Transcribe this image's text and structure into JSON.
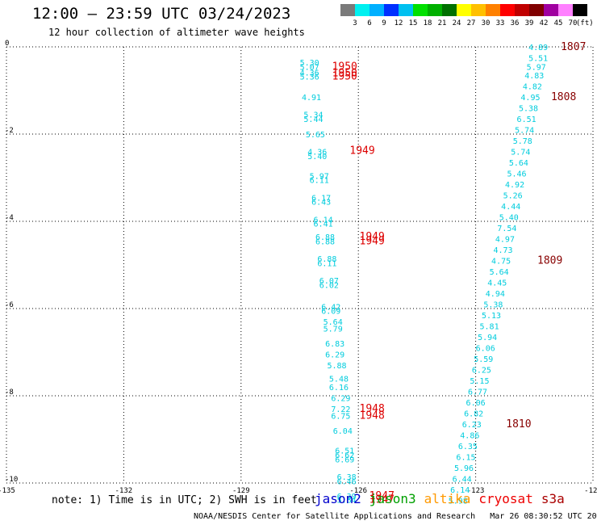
{
  "header": {
    "title": "12:00 – 23:59 UTC 03/24/2023",
    "subtitle": "12 hour collection of altimeter wave heights"
  },
  "colorbar": {
    "unit": "(ft)",
    "ticks": [
      "3",
      "6",
      "9",
      "12",
      "15",
      "18",
      "21",
      "24",
      "27",
      "30",
      "33",
      "36",
      "39",
      "42",
      "45",
      "70"
    ],
    "colors": [
      "#7a7a7a",
      "#00f0f0",
      "#00b0ff",
      "#0030ff",
      "#00c0f0",
      "#00e000",
      "#00b000",
      "#007000",
      "#ffff00",
      "#ffc000",
      "#ff8000",
      "#ff0000",
      "#c00000",
      "#800000",
      "#a000a0",
      "#ff80ff",
      "#000000"
    ]
  },
  "footer": {
    "note": "note: 1) Time is in UTC; 2) SWH is in feet",
    "credit": "NOAA/NESDIS Center for Satellite Applications and Research   Mar 26 08:30:52 UTC 2023"
  },
  "satellites": [
    {
      "name": "jason2",
      "color": "#0000cc"
    },
    {
      "name": "jason3",
      "color": "#00a000"
    },
    {
      "name": "altika",
      "color": "#ff9900"
    },
    {
      "name": "cryosat",
      "color": "#ee0000"
    },
    {
      "name": "s3a",
      "color": "#aa0000"
    }
  ],
  "chart_data": {
    "type": "scatter",
    "xlim": [
      -135,
      -120
    ],
    "ylim": [
      -10,
      0
    ],
    "xticks": [
      "-135",
      "-132",
      "-129",
      "-126",
      "-123",
      "-120"
    ],
    "yticks": [
      "0",
      "-2",
      "-4",
      "-6",
      "-8",
      "-10"
    ],
    "grid": true,
    "label_color": "#00ccdd",
    "pass_color_red": "#dd0000",
    "pass_color_dark": "#880000",
    "track_east": [
      {
        "lon": -121.4,
        "lat": 0.0,
        "v": "4.89"
      },
      {
        "lon": -121.4,
        "lat": -0.25,
        "v": "5.51"
      },
      {
        "lon": -121.45,
        "lat": -0.45,
        "v": "5.97"
      },
      {
        "lon": -121.5,
        "lat": -0.65,
        "v": "4.83"
      },
      {
        "lon": -121.55,
        "lat": -0.9,
        "v": "4.82"
      },
      {
        "lon": -121.6,
        "lat": -1.15,
        "v": "4.95"
      },
      {
        "lon": -121.65,
        "lat": -1.4,
        "v": "5.38"
      },
      {
        "lon": -121.7,
        "lat": -1.65,
        "v": "6.51"
      },
      {
        "lon": -121.75,
        "lat": -1.9,
        "v": "5.74"
      },
      {
        "lon": -121.8,
        "lat": -2.15,
        "v": "5.78"
      },
      {
        "lon": -121.85,
        "lat": -2.4,
        "v": "5.74"
      },
      {
        "lon": -121.9,
        "lat": -2.65,
        "v": "5.64"
      },
      {
        "lon": -121.95,
        "lat": -2.9,
        "v": "5.46"
      },
      {
        "lon": -122.0,
        "lat": -3.15,
        "v": "4.92"
      },
      {
        "lon": -122.05,
        "lat": -3.4,
        "v": "5.26"
      },
      {
        "lon": -122.1,
        "lat": -3.65,
        "v": "4.44"
      },
      {
        "lon": -122.15,
        "lat": -3.9,
        "v": "5.40"
      },
      {
        "lon": -122.2,
        "lat": -4.15,
        "v": "7.54"
      },
      {
        "lon": -122.25,
        "lat": -4.4,
        "v": "4.97"
      },
      {
        "lon": -122.3,
        "lat": -4.65,
        "v": "4.73"
      },
      {
        "lon": -122.35,
        "lat": -4.9,
        "v": "4.75"
      },
      {
        "lon": -122.4,
        "lat": -5.15,
        "v": "5.64"
      },
      {
        "lon": -122.45,
        "lat": -5.4,
        "v": "4.45"
      },
      {
        "lon": -122.5,
        "lat": -5.65,
        "v": "4.94"
      },
      {
        "lon": -122.55,
        "lat": -5.9,
        "v": "5.38"
      },
      {
        "lon": -122.6,
        "lat": -6.15,
        "v": "5.13"
      },
      {
        "lon": -122.65,
        "lat": -6.4,
        "v": "5.81"
      },
      {
        "lon": -122.7,
        "lat": -6.65,
        "v": "5.94"
      },
      {
        "lon": -122.75,
        "lat": -6.9,
        "v": "6.06"
      },
      {
        "lon": -122.8,
        "lat": -7.15,
        "v": "5.59"
      },
      {
        "lon": -122.85,
        "lat": -7.4,
        "v": "6.25"
      },
      {
        "lon": -122.9,
        "lat": -7.65,
        "v": "5.15"
      },
      {
        "lon": -122.95,
        "lat": -7.9,
        "v": "6.77"
      },
      {
        "lon": -123.0,
        "lat": -8.15,
        "v": "6.06"
      },
      {
        "lon": -123.05,
        "lat": -8.4,
        "v": "6.82"
      },
      {
        "lon": -123.1,
        "lat": -8.65,
        "v": "6.23"
      },
      {
        "lon": -123.15,
        "lat": -8.9,
        "v": "4.86"
      },
      {
        "lon": -123.2,
        "lat": -9.15,
        "v": "6.35"
      },
      {
        "lon": -123.25,
        "lat": -9.4,
        "v": "6.15"
      },
      {
        "lon": -123.3,
        "lat": -9.65,
        "v": "5.96"
      },
      {
        "lon": -123.35,
        "lat": -9.9,
        "v": "6.44"
      },
      {
        "lon": -123.4,
        "lat": -10.15,
        "v": "6.14"
      },
      {
        "lon": -123.45,
        "lat": -10.4,
        "v": "5.98"
      }
    ],
    "track_west": [
      {
        "lon": -127.25,
        "lat": -0.35,
        "v": "5.30"
      },
      {
        "lon": -127.25,
        "lat": -0.45,
        "v": "5.07"
      },
      {
        "lon": -127.25,
        "lat": -0.58,
        "v": "4.36"
      },
      {
        "lon": -127.25,
        "lat": -0.68,
        "v": "5.36"
      },
      {
        "lon": -127.2,
        "lat": -1.15,
        "v": "4.91"
      },
      {
        "lon": -127.15,
        "lat": -1.55,
        "v": "5.34"
      },
      {
        "lon": -127.15,
        "lat": -1.65,
        "v": "5.44"
      },
      {
        "lon": -127.1,
        "lat": -2.0,
        "v": "5.65"
      },
      {
        "lon": -127.05,
        "lat": -2.4,
        "v": "4.36"
      },
      {
        "lon": -127.05,
        "lat": -2.5,
        "v": "5.40"
      },
      {
        "lon": -127.0,
        "lat": -2.95,
        "v": "5.97"
      },
      {
        "lon": -127.0,
        "lat": -3.05,
        "v": "6.11"
      },
      {
        "lon": -126.95,
        "lat": -3.45,
        "v": "6.17"
      },
      {
        "lon": -126.95,
        "lat": -3.55,
        "v": "6.43"
      },
      {
        "lon": -126.9,
        "lat": -3.95,
        "v": "6.14"
      },
      {
        "lon": -126.9,
        "lat": -4.05,
        "v": "6.41"
      },
      {
        "lon": -126.85,
        "lat": -4.35,
        "v": "6.88"
      },
      {
        "lon": -126.85,
        "lat": -4.45,
        "v": "6.88"
      },
      {
        "lon": -126.8,
        "lat": -4.85,
        "v": "6.88"
      },
      {
        "lon": -126.8,
        "lat": -4.95,
        "v": "6.11"
      },
      {
        "lon": -126.75,
        "lat": -5.35,
        "v": "6.07"
      },
      {
        "lon": -126.75,
        "lat": -5.45,
        "v": "6.02"
      },
      {
        "lon": -126.7,
        "lat": -5.95,
        "v": "6.42"
      },
      {
        "lon": -126.7,
        "lat": -6.05,
        "v": "6.09"
      },
      {
        "lon": -126.65,
        "lat": -6.3,
        "v": "5.64"
      },
      {
        "lon": -126.65,
        "lat": -6.45,
        "v": "5.79"
      },
      {
        "lon": -126.6,
        "lat": -6.8,
        "v": "6.83"
      },
      {
        "lon": -126.6,
        "lat": -7.05,
        "v": "6.29"
      },
      {
        "lon": -126.55,
        "lat": -7.3,
        "v": "5.88"
      },
      {
        "lon": -126.5,
        "lat": -7.6,
        "v": "5.48"
      },
      {
        "lon": -126.5,
        "lat": -7.8,
        "v": "6.16"
      },
      {
        "lon": -126.45,
        "lat": -8.05,
        "v": "6.29"
      },
      {
        "lon": -126.45,
        "lat": -8.3,
        "v": "7.22"
      },
      {
        "lon": -126.45,
        "lat": -8.45,
        "v": "6.75"
      },
      {
        "lon": -126.4,
        "lat": -8.8,
        "v": "6.04"
      },
      {
        "lon": -126.35,
        "lat": -9.25,
        "v": "6.51"
      },
      {
        "lon": -126.35,
        "lat": -9.35,
        "v": "6.62"
      },
      {
        "lon": -126.35,
        "lat": -9.45,
        "v": "6.69"
      },
      {
        "lon": -126.3,
        "lat": -9.85,
        "v": "6.38"
      },
      {
        "lon": -126.3,
        "lat": -9.95,
        "v": "6.46"
      },
      {
        "lon": -126.3,
        "lat": -10.3,
        "v": "6.39"
      },
      {
        "lon": -126.3,
        "lat": -10.38,
        "v": "5.84"
      }
    ],
    "pass_labels_red": [
      {
        "lon": -126.35,
        "lat": -0.45,
        "t": "1950"
      },
      {
        "lon": -126.35,
        "lat": -0.6,
        "t": "1950"
      },
      {
        "lon": -126.35,
        "lat": -0.68,
        "t": "1950"
      },
      {
        "lon": -125.9,
        "lat": -2.38,
        "t": "1949"
      },
      {
        "lon": -125.65,
        "lat": -4.35,
        "t": "1949"
      },
      {
        "lon": -125.65,
        "lat": -4.45,
        "t": "1949"
      },
      {
        "lon": -125.65,
        "lat": -8.3,
        "t": "1948"
      },
      {
        "lon": -125.65,
        "lat": -8.45,
        "t": "1948"
      },
      {
        "lon": -125.4,
        "lat": -10.3,
        "t": "1947"
      },
      {
        "lon": -125.4,
        "lat": -10.38,
        "t": "1947"
      }
    ],
    "pass_labels_dark": [
      {
        "lon": -120.5,
        "lat": 0.0,
        "t": "1807"
      },
      {
        "lon": -120.75,
        "lat": -1.15,
        "t": "1808"
      },
      {
        "lon": -121.1,
        "lat": -4.9,
        "t": "1809"
      },
      {
        "lon": -121.9,
        "lat": -8.65,
        "t": "1810"
      }
    ]
  }
}
